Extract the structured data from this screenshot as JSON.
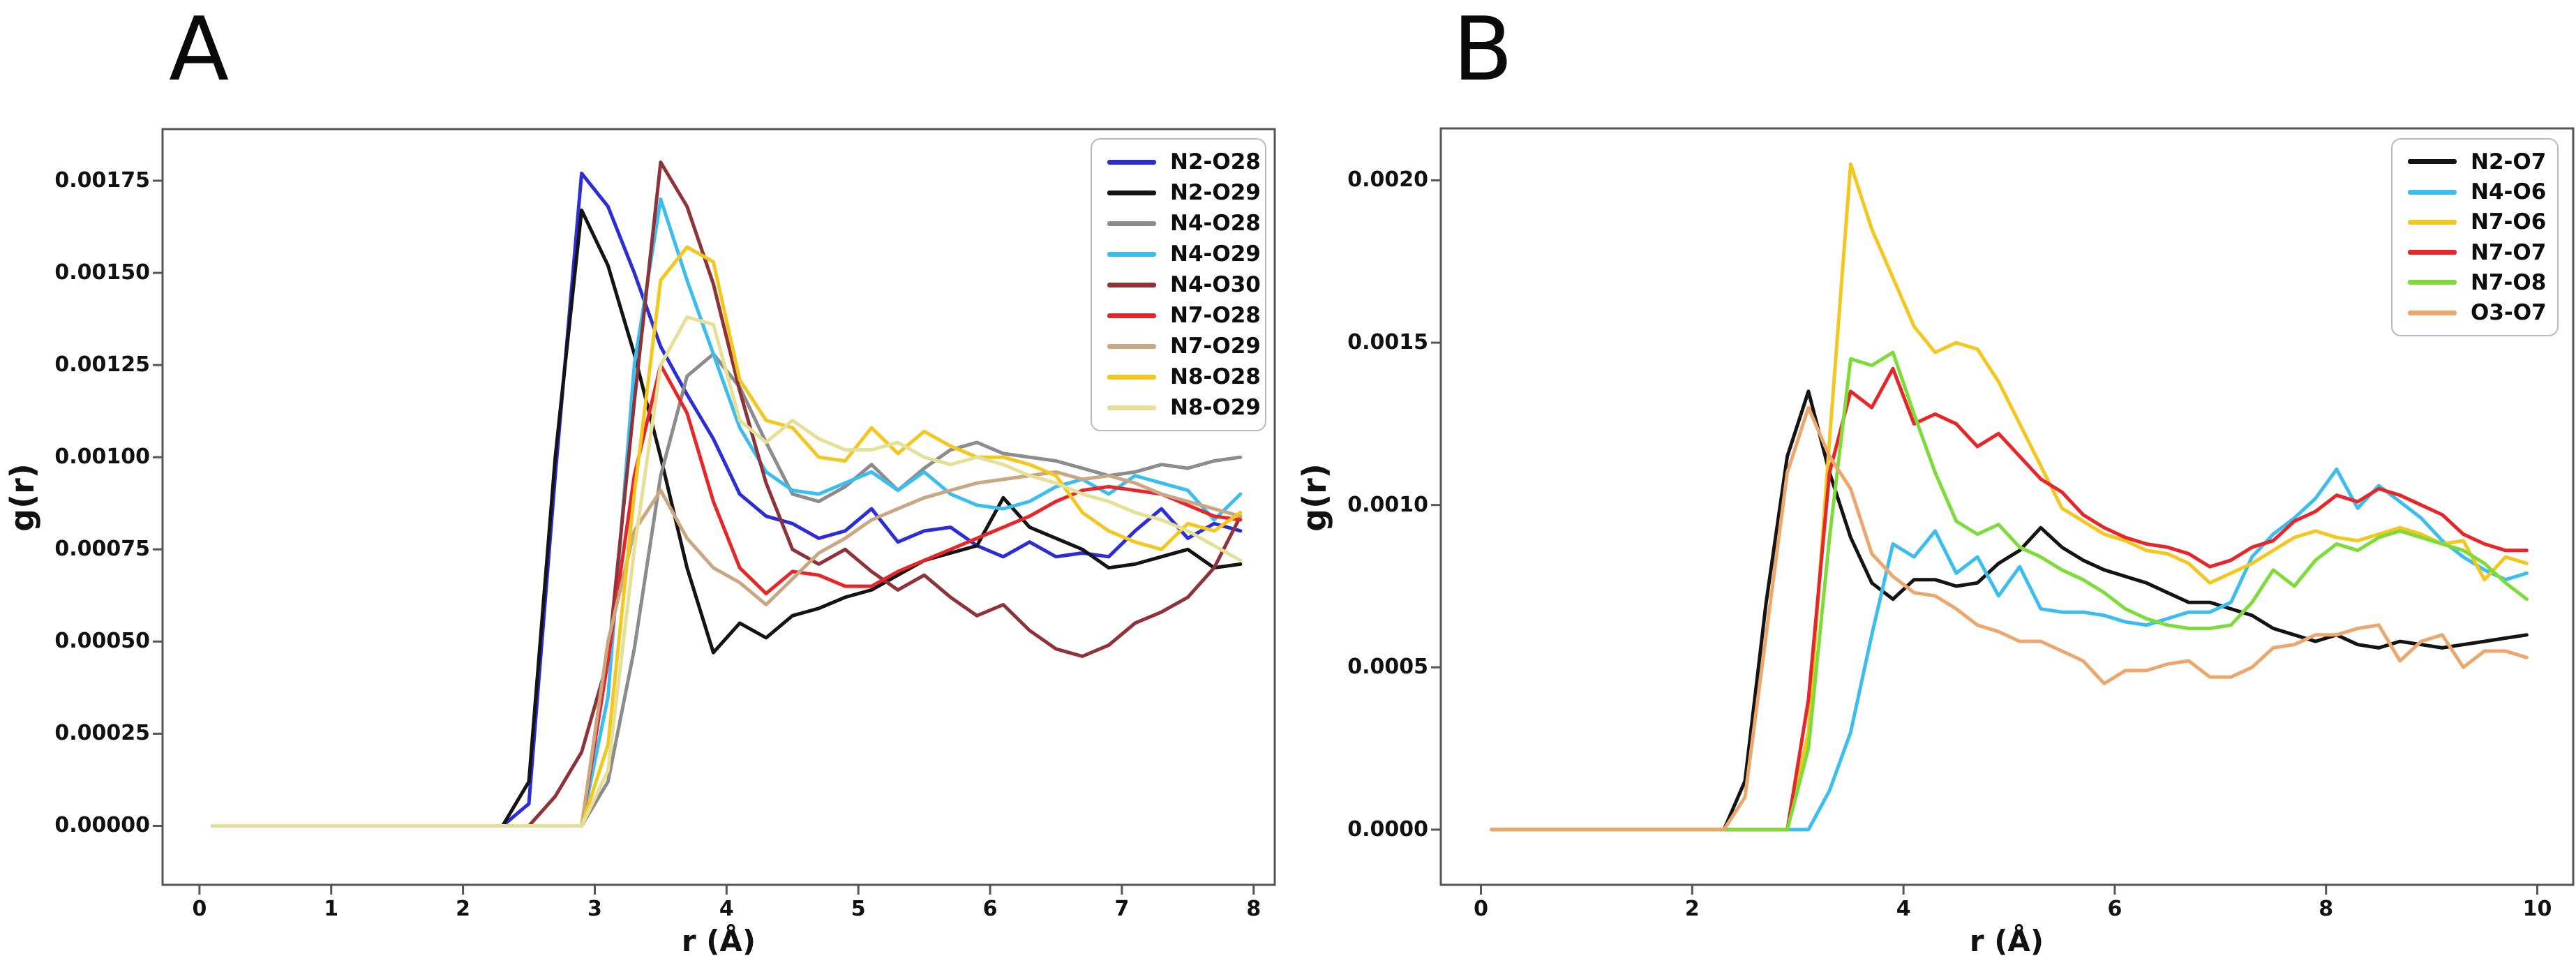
{
  "figure": {
    "background": "#ffffff",
    "text_color": "#111111",
    "spine_color": "#555555"
  },
  "chart_data": [
    {
      "type": "line",
      "panel_label": "A",
      "title": "A",
      "xlabel": "r (Å)",
      "ylabel": "g(r)",
      "xlim": [
        -0.28,
        8.16
      ],
      "ylim": [
        -0.00016,
        0.00189
      ],
      "x_ticks": [
        0,
        1,
        2,
        3,
        4,
        5,
        6,
        7,
        8
      ],
      "y_ticks": [
        0,
        0.00025,
        0.0005,
        0.00075,
        0.001,
        0.00125,
        0.0015,
        0.00175
      ],
      "y_tick_labels": [
        "0.00000",
        "0.00025",
        "0.00050",
        "0.00075",
        "0.00100",
        "0.00125",
        "0.00150",
        "0.00175"
      ],
      "legend_position": "upper right",
      "grid": false,
      "x": [
        0.1,
        0.3,
        0.5,
        0.7,
        0.9,
        1.1,
        1.3,
        1.5,
        1.7,
        1.9,
        2.1,
        2.3,
        2.5,
        2.7,
        2.9,
        3.1,
        3.3,
        3.5,
        3.7,
        3.9,
        4.1,
        4.3,
        4.5,
        4.7,
        4.9,
        5.1,
        5.3,
        5.5,
        5.7,
        5.9,
        6.1,
        6.3,
        6.5,
        6.7,
        6.9,
        7.1,
        7.3,
        7.5,
        7.7,
        7.9
      ],
      "series": [
        {
          "name": "N2-O28",
          "color": "#2d2dd6",
          "values": [
            0,
            0,
            0,
            0,
            0,
            0,
            0,
            0,
            0,
            0,
            0,
            0,
            6e-05,
            0.00095,
            0.00177,
            0.00168,
            0.0015,
            0.0013,
            0.00117,
            0.00105,
            0.0009,
            0.00084,
            0.00082,
            0.00078,
            0.0008,
            0.00086,
            0.00077,
            0.0008,
            0.00081,
            0.00076,
            0.00073,
            0.00077,
            0.00073,
            0.00074,
            0.00073,
            0.0008,
            0.00086,
            0.00078,
            0.00082,
            0.0008
          ]
        },
        {
          "name": "N2-O29",
          "color": "#141414",
          "values": [
            0,
            0,
            0,
            0,
            0,
            0,
            0,
            0,
            0,
            0,
            0,
            0,
            0.00012,
            0.001,
            0.00167,
            0.00152,
            0.00128,
            0.001,
            0.0007,
            0.00047,
            0.00055,
            0.00051,
            0.00057,
            0.00059,
            0.00062,
            0.00064,
            0.00068,
            0.00072,
            0.00074,
            0.00076,
            0.00089,
            0.00081,
            0.00078,
            0.00075,
            0.0007,
            0.00071,
            0.00073,
            0.00075,
            0.0007,
            0.00071
          ]
        },
        {
          "name": "N4-O28",
          "color": "#8c8c8c",
          "values": [
            0,
            0,
            0,
            0,
            0,
            0,
            0,
            0,
            0,
            0,
            0,
            0,
            0,
            0,
            0,
            0.00012,
            0.00048,
            0.00095,
            0.00122,
            0.00128,
            0.00119,
            0.00104,
            0.0009,
            0.00088,
            0.00092,
            0.00098,
            0.00091,
            0.00097,
            0.00102,
            0.00104,
            0.00101,
            0.001,
            0.00099,
            0.00097,
            0.00095,
            0.00096,
            0.00098,
            0.00097,
            0.00099,
            0.001
          ]
        },
        {
          "name": "N4-O29",
          "color": "#3bbdf0",
          "values": [
            0,
            0,
            0,
            0,
            0,
            0,
            0,
            0,
            0,
            0,
            0,
            0,
            0,
            0,
            0,
            0.00035,
            0.00125,
            0.0017,
            0.00148,
            0.00128,
            0.00108,
            0.00096,
            0.00091,
            0.0009,
            0.00093,
            0.00096,
            0.00091,
            0.00096,
            0.0009,
            0.00087,
            0.00086,
            0.00088,
            0.00092,
            0.00094,
            0.0009,
            0.00095,
            0.00093,
            0.00091,
            0.00083,
            0.0009
          ]
        },
        {
          "name": "N4-O30",
          "color": "#8e3339",
          "values": [
            0,
            0,
            0,
            0,
            0,
            0,
            0,
            0,
            0,
            0,
            0,
            0,
            0,
            8e-05,
            0.0002,
            0.00045,
            0.00115,
            0.0018,
            0.00168,
            0.00147,
            0.00118,
            0.00093,
            0.00075,
            0.00071,
            0.00075,
            0.00069,
            0.00064,
            0.00068,
            0.00062,
            0.00057,
            0.0006,
            0.00053,
            0.00048,
            0.00046,
            0.00049,
            0.00055,
            0.00058,
            0.00062,
            0.0007,
            0.00084
          ]
        },
        {
          "name": "N7-O28",
          "color": "#e62629",
          "values": [
            0,
            0,
            0,
            0,
            0,
            0,
            0,
            0,
            0,
            0,
            0,
            0,
            0,
            0,
            0,
            0.00045,
            0.00095,
            0.00125,
            0.00112,
            0.00088,
            0.0007,
            0.00063,
            0.00069,
            0.00068,
            0.00065,
            0.00065,
            0.00069,
            0.00072,
            0.00075,
            0.00078,
            0.00081,
            0.00084,
            0.00088,
            0.00091,
            0.00092,
            0.00091,
            0.0009,
            0.00087,
            0.00084,
            0.00083
          ]
        },
        {
          "name": "N7-O29",
          "color": "#c9a783",
          "values": [
            0,
            0,
            0,
            0,
            0,
            0,
            0,
            0,
            0,
            0,
            0,
            0,
            0,
            0,
            0,
            0.0005,
            0.0008,
            0.00091,
            0.00078,
            0.0007,
            0.00066,
            0.0006,
            0.00067,
            0.00074,
            0.00078,
            0.00083,
            0.00086,
            0.00089,
            0.00091,
            0.00093,
            0.00094,
            0.00095,
            0.00096,
            0.00094,
            0.00095,
            0.00093,
            0.0009,
            0.00088,
            0.00086,
            0.00084
          ]
        },
        {
          "name": "N8-O28",
          "color": "#f3c71e",
          "values": [
            0,
            0,
            0,
            0,
            0,
            0,
            0,
            0,
            0,
            0,
            0,
            0,
            0,
            0,
            0,
            0.00022,
            0.0009,
            0.00148,
            0.00157,
            0.00153,
            0.00121,
            0.0011,
            0.00108,
            0.001,
            0.00099,
            0.00108,
            0.00101,
            0.00107,
            0.00103,
            0.001,
            0.001,
            0.00098,
            0.00095,
            0.00085,
            0.0008,
            0.00077,
            0.00075,
            0.00082,
            0.0008,
            0.00085
          ]
        },
        {
          "name": "N8-O29",
          "color": "#e6df96",
          "values": [
            0,
            0,
            0,
            0,
            0,
            0,
            0,
            0,
            0,
            0,
            0,
            0,
            0,
            0,
            0,
            0.00015,
            0.00075,
            0.00125,
            0.00138,
            0.00136,
            0.0011,
            0.00104,
            0.0011,
            0.00105,
            0.00102,
            0.00102,
            0.00104,
            0.001,
            0.00098,
            0.001,
            0.00098,
            0.00095,
            0.00093,
            0.0009,
            0.00088,
            0.00085,
            0.00083,
            0.0008,
            0.00076,
            0.00072
          ]
        }
      ]
    },
    {
      "type": "line",
      "panel_label": "B",
      "title": "B",
      "xlabel": "r (Å)",
      "ylabel": "g(r)",
      "xlim": [
        -0.38,
        10.34
      ],
      "ylim": [
        -0.00017,
        0.00216
      ],
      "x_ticks": [
        0,
        2,
        4,
        6,
        8,
        10
      ],
      "y_ticks": [
        0,
        0.0005,
        0.001,
        0.0015,
        0.002
      ],
      "y_tick_labels": [
        "0.0000",
        "0.0005",
        "0.0010",
        "0.0015",
        "0.0020"
      ],
      "legend_position": "upper right",
      "grid": false,
      "x": [
        0.1,
        0.3,
        0.5,
        0.7,
        0.9,
        1.1,
        1.3,
        1.5,
        1.7,
        1.9,
        2.1,
        2.3,
        2.5,
        2.7,
        2.9,
        3.1,
        3.3,
        3.5,
        3.7,
        3.9,
        4.1,
        4.3,
        4.5,
        4.7,
        4.9,
        5.1,
        5.3,
        5.5,
        5.7,
        5.9,
        6.1,
        6.3,
        6.5,
        6.7,
        6.9,
        7.1,
        7.3,
        7.5,
        7.7,
        7.9,
        8.1,
        8.3,
        8.5,
        8.7,
        8.9,
        9.1,
        9.3,
        9.5,
        9.7,
        9.9
      ],
      "series": [
        {
          "name": "N2-O7",
          "color": "#141414",
          "values": [
            0,
            0,
            0,
            0,
            0,
            0,
            0,
            0,
            0,
            0,
            0,
            0,
            0.00015,
            0.0007,
            0.00115,
            0.00135,
            0.0011,
            0.0009,
            0.00076,
            0.00071,
            0.00077,
            0.00077,
            0.00075,
            0.00076,
            0.00082,
            0.00086,
            0.00093,
            0.00087,
            0.00083,
            0.0008,
            0.00078,
            0.00076,
            0.00073,
            0.0007,
            0.0007,
            0.00068,
            0.00066,
            0.00062,
            0.0006,
            0.00058,
            0.0006,
            0.00057,
            0.00056,
            0.00058,
            0.00057,
            0.00056,
            0.00057,
            0.00058,
            0.00059,
            0.0006
          ]
        },
        {
          "name": "N4-O6",
          "color": "#3bbdf0",
          "values": [
            0,
            0,
            0,
            0,
            0,
            0,
            0,
            0,
            0,
            0,
            0,
            0,
            0,
            0,
            0,
            0,
            0.00012,
            0.0003,
            0.0006,
            0.00088,
            0.00084,
            0.00092,
            0.00079,
            0.00084,
            0.00072,
            0.00081,
            0.00068,
            0.00067,
            0.00067,
            0.00066,
            0.00064,
            0.00063,
            0.00065,
            0.00067,
            0.00067,
            0.0007,
            0.00084,
            0.00091,
            0.00096,
            0.00102,
            0.00111,
            0.00099,
            0.00106,
            0.00101,
            0.00096,
            0.00089,
            0.00084,
            0.0008,
            0.00077,
            0.00079
          ]
        },
        {
          "name": "N7-O6",
          "color": "#f3c71e",
          "values": [
            0,
            0,
            0,
            0,
            0,
            0,
            0,
            0,
            0,
            0,
            0,
            0,
            0,
            0,
            0,
            0.0003,
            0.0012,
            0.00205,
            0.00185,
            0.0017,
            0.00155,
            0.00147,
            0.0015,
            0.00148,
            0.00138,
            0.00125,
            0.00112,
            0.00099,
            0.00095,
            0.00091,
            0.00089,
            0.00086,
            0.00085,
            0.00082,
            0.00076,
            0.00079,
            0.00082,
            0.00086,
            0.0009,
            0.00092,
            0.0009,
            0.00089,
            0.00091,
            0.00093,
            0.00091,
            0.00088,
            0.00089,
            0.00077,
            0.00084,
            0.00082
          ]
        },
        {
          "name": "N7-O7",
          "color": "#e62629",
          "values": [
            0,
            0,
            0,
            0,
            0,
            0,
            0,
            0,
            0,
            0,
            0,
            0,
            0,
            0,
            0,
            0.0004,
            0.0011,
            0.00135,
            0.0013,
            0.00142,
            0.00125,
            0.00128,
            0.00125,
            0.00118,
            0.00122,
            0.00115,
            0.00108,
            0.00104,
            0.00097,
            0.00093,
            0.0009,
            0.00088,
            0.00087,
            0.00085,
            0.00081,
            0.00083,
            0.00087,
            0.00089,
            0.00095,
            0.00098,
            0.00103,
            0.00101,
            0.00105,
            0.00103,
            0.001,
            0.00097,
            0.00091,
            0.00088,
            0.00086,
            0.00086
          ]
        },
        {
          "name": "N7-O8",
          "color": "#7ddc3a",
          "values": [
            0,
            0,
            0,
            0,
            0,
            0,
            0,
            0,
            0,
            0,
            0,
            0,
            0,
            0,
            0,
            0.00025,
            0.0009,
            0.00145,
            0.00143,
            0.00147,
            0.00128,
            0.0011,
            0.00095,
            0.00091,
            0.00094,
            0.00087,
            0.00084,
            0.0008,
            0.00077,
            0.00073,
            0.00068,
            0.00065,
            0.00063,
            0.00062,
            0.00062,
            0.00063,
            0.0007,
            0.0008,
            0.00075,
            0.00083,
            0.00088,
            0.00086,
            0.0009,
            0.00092,
            0.0009,
            0.00088,
            0.00086,
            0.00082,
            0.00076,
            0.00071
          ]
        },
        {
          "name": "O3-O7",
          "color": "#eca76d",
          "values": [
            0,
            0,
            0,
            0,
            0,
            0,
            0,
            0,
            0,
            0,
            0,
            0,
            0.0001,
            0.0006,
            0.0011,
            0.0013,
            0.00115,
            0.00105,
            0.00085,
            0.00078,
            0.00073,
            0.00072,
            0.00068,
            0.00063,
            0.00061,
            0.00058,
            0.00058,
            0.00055,
            0.00052,
            0.00045,
            0.00049,
            0.00049,
            0.00051,
            0.00052,
            0.00047,
            0.00047,
            0.0005,
            0.00056,
            0.00057,
            0.0006,
            0.0006,
            0.00062,
            0.00063,
            0.00052,
            0.00058,
            0.0006,
            0.0005,
            0.00055,
            0.00055,
            0.00053
          ]
        }
      ]
    }
  ]
}
